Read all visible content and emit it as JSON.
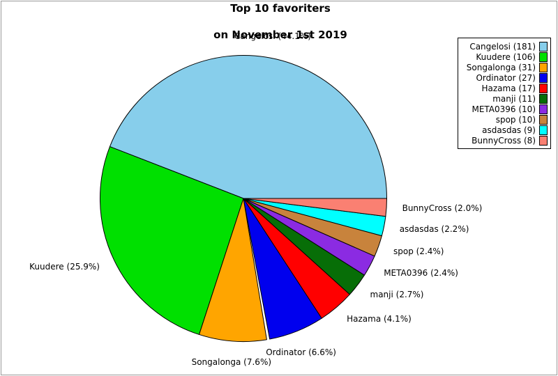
{
  "title": {
    "line1": "Top 10 favoriters",
    "line2": "on November 1st 2019"
  },
  "chart_data": {
    "type": "pie",
    "title": "Top 10 favoriters on November 1st 2019",
    "start_angle_deg": 0,
    "direction": "counterclockwise",
    "legend_position": "top-right",
    "slices": [
      {
        "name": "Cangelosi",
        "count": 181,
        "pct": "44.1",
        "color": "#87CEEB",
        "slice_label": "Cangelosi (44.1%)",
        "legend_label": "Cangelosi (181)"
      },
      {
        "name": "Kuudere",
        "count": 106,
        "pct": "25.9",
        "color": "#00E000",
        "slice_label": "Kuudere (25.9%)",
        "legend_label": "Kuudere (106)"
      },
      {
        "name": "Songalonga",
        "count": 31,
        "pct": "7.6",
        "color": "#FFA500",
        "slice_label": "Songalonga (7.6%)",
        "legend_label": "Songalonga (31)"
      },
      {
        "name": "Ordinator",
        "count": 27,
        "pct": "6.6",
        "color": "#0000EE",
        "slice_label": "Ordinator (6.6%)",
        "legend_label": "Ordinator (27)"
      },
      {
        "name": "Hazama",
        "count": 17,
        "pct": "4.1",
        "color": "#FF0000",
        "slice_label": "Hazama (4.1%)",
        "legend_label": "Hazama (17)"
      },
      {
        "name": "manji",
        "count": 11,
        "pct": "2.7",
        "color": "#076E07",
        "slice_label": "manji (2.7%)",
        "legend_label": "manji (11)"
      },
      {
        "name": "META0396",
        "count": 10,
        "pct": "2.4",
        "color": "#8B2BE2",
        "slice_label": "META0396 (2.4%)",
        "legend_label": "META0396 (10)"
      },
      {
        "name": "spop",
        "count": 10,
        "pct": "2.4",
        "color": "#C8833C",
        "slice_label": "spop (2.4%)",
        "legend_label": "spop (10)"
      },
      {
        "name": "asdasdas",
        "count": 9,
        "pct": "2.2",
        "color": "#00FFFF",
        "slice_label": "asdasdas (2.2%)",
        "legend_label": "asdasdas (9)"
      },
      {
        "name": "BunnyCross",
        "count": 8,
        "pct": "2.0",
        "color": "#FA8072",
        "slice_label": "BunnyCross (2.0%)",
        "legend_label": "BunnyCross (8)"
      }
    ]
  }
}
